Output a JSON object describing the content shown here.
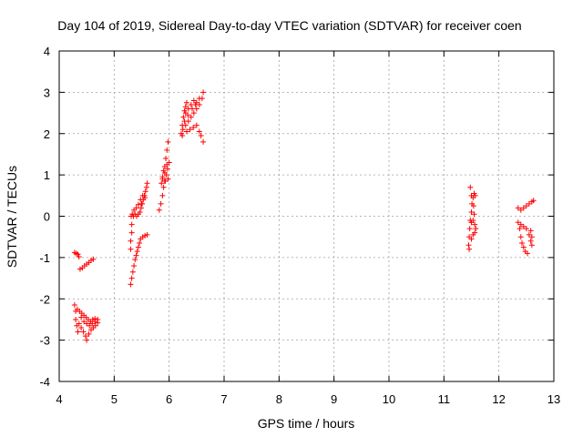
{
  "chart_data": {
    "type": "scatter",
    "title": "Day 104 of 2019, Sidereal Day-to-day VTEC variation (SDTVAR) for receiver coen",
    "xlabel": "GPS time / hours",
    "ylabel": "SDTVAR / TECUs",
    "xlim": [
      4,
      13
    ],
    "ylim": [
      -4,
      4
    ],
    "xticks": [
      4,
      5,
      6,
      7,
      8,
      9,
      10,
      11,
      12,
      13
    ],
    "yticks": [
      -4,
      -3,
      -2,
      -1,
      0,
      1,
      2,
      3,
      4
    ],
    "xtick_labels": [
      "4",
      "5",
      "6",
      "7",
      "8",
      "9",
      "10",
      "11",
      "12",
      "13"
    ],
    "ytick_labels": [
      "-4",
      "-3",
      "-2",
      "-1",
      "0",
      "1",
      "2",
      "3",
      "4"
    ],
    "grid": true,
    "marker": "+",
    "color": "#ff0000",
    "series": [
      {
        "name": "SDTVAR",
        "points": [
          [
            4.28,
            -0.88
          ],
          [
            4.31,
            -0.9
          ],
          [
            4.34,
            -0.92
          ],
          [
            4.36,
            -0.98
          ],
          [
            4.38,
            -1.28
          ],
          [
            4.42,
            -1.25
          ],
          [
            4.46,
            -1.2
          ],
          [
            4.5,
            -1.16
          ],
          [
            4.54,
            -1.12
          ],
          [
            4.58,
            -1.07
          ],
          [
            4.62,
            -1.04
          ],
          [
            4.28,
            -2.15
          ],
          [
            4.3,
            -2.3
          ],
          [
            4.3,
            -2.5
          ],
          [
            4.32,
            -2.65
          ],
          [
            4.34,
            -2.8
          ],
          [
            4.33,
            -2.25
          ],
          [
            4.37,
            -2.3
          ],
          [
            4.41,
            -2.35
          ],
          [
            4.45,
            -2.4
          ],
          [
            4.49,
            -2.45
          ],
          [
            4.53,
            -2.5
          ],
          [
            4.57,
            -2.55
          ],
          [
            4.61,
            -2.5
          ],
          [
            4.65,
            -2.48
          ],
          [
            4.36,
            -2.6
          ],
          [
            4.4,
            -2.7
          ],
          [
            4.44,
            -2.8
          ],
          [
            4.48,
            -2.9
          ],
          [
            4.5,
            -3.0
          ],
          [
            4.54,
            -2.85
          ],
          [
            4.58,
            -2.75
          ],
          [
            4.62,
            -2.7
          ],
          [
            4.66,
            -2.65
          ],
          [
            4.7,
            -2.58
          ],
          [
            4.4,
            -2.45
          ],
          [
            4.45,
            -2.55
          ],
          [
            4.5,
            -2.6
          ],
          [
            4.55,
            -2.65
          ],
          [
            4.6,
            -2.6
          ],
          [
            4.65,
            -2.55
          ],
          [
            4.7,
            -2.5
          ],
          [
            5.3,
            -1.65
          ],
          [
            5.32,
            -1.5
          ],
          [
            5.34,
            -1.35
          ],
          [
            5.36,
            -1.2
          ],
          [
            5.38,
            -1.05
          ],
          [
            5.4,
            -0.95
          ],
          [
            5.42,
            -0.85
          ],
          [
            5.44,
            -0.75
          ],
          [
            5.46,
            -0.65
          ],
          [
            5.48,
            -0.55
          ],
          [
            5.52,
            -0.5
          ],
          [
            5.56,
            -0.47
          ],
          [
            5.6,
            -0.45
          ],
          [
            5.3,
            -0.8
          ],
          [
            5.3,
            -0.6
          ],
          [
            5.32,
            -0.4
          ],
          [
            5.32,
            -0.2
          ],
          [
            5.31,
            0.0
          ],
          [
            5.33,
            0.05
          ],
          [
            5.35,
            0.0
          ],
          [
            5.38,
            0.05
          ],
          [
            5.41,
            0.0
          ],
          [
            5.44,
            0.05
          ],
          [
            5.47,
            0.1
          ],
          [
            5.49,
            0.2
          ],
          [
            5.51,
            0.3
          ],
          [
            5.53,
            0.4
          ],
          [
            5.55,
            0.5
          ],
          [
            5.57,
            0.6
          ],
          [
            5.59,
            0.7
          ],
          [
            5.6,
            0.8
          ],
          [
            5.36,
            0.15
          ],
          [
            5.4,
            0.2
          ],
          [
            5.44,
            0.28
          ],
          [
            5.48,
            0.4
          ],
          [
            5.52,
            0.5
          ],
          [
            5.56,
            0.45
          ],
          [
            5.5,
            0.3
          ],
          [
            5.82,
            0.15
          ],
          [
            5.85,
            0.3
          ],
          [
            5.88,
            0.5
          ],
          [
            5.9,
            0.7
          ],
          [
            5.92,
            0.85
          ],
          [
            5.95,
            1.0
          ],
          [
            5.97,
            1.15
          ],
          [
            6.0,
            1.3
          ],
          [
            5.86,
            0.8
          ],
          [
            5.88,
            0.95
          ],
          [
            5.9,
            1.1
          ],
          [
            5.92,
            1.2
          ],
          [
            5.94,
            1.4
          ],
          [
            5.96,
            1.6
          ],
          [
            5.98,
            1.8
          ],
          [
            5.88,
            0.9
          ],
          [
            5.93,
            0.85
          ],
          [
            5.98,
            0.9
          ],
          [
            5.92,
            1.05
          ],
          [
            5.96,
            1.25
          ],
          [
            6.22,
            2.0
          ],
          [
            6.24,
            2.2
          ],
          [
            6.26,
            2.4
          ],
          [
            6.28,
            2.55
          ],
          [
            6.3,
            2.65
          ],
          [
            6.32,
            2.75
          ],
          [
            6.25,
            2.1
          ],
          [
            6.3,
            2.2
          ],
          [
            6.35,
            2.3
          ],
          [
            6.4,
            2.4
          ],
          [
            6.45,
            2.5
          ],
          [
            6.5,
            2.6
          ],
          [
            6.55,
            2.7
          ],
          [
            6.6,
            2.85
          ],
          [
            6.62,
            3.0
          ],
          [
            6.3,
            2.5
          ],
          [
            6.35,
            2.6
          ],
          [
            6.4,
            2.7
          ],
          [
            6.45,
            2.8
          ],
          [
            6.5,
            2.75
          ],
          [
            6.55,
            2.85
          ],
          [
            6.32,
            2.05
          ],
          [
            6.38,
            2.1
          ],
          [
            6.44,
            2.15
          ],
          [
            6.5,
            2.2
          ],
          [
            6.55,
            2.05
          ],
          [
            6.58,
            1.95
          ],
          [
            6.62,
            1.8
          ],
          [
            6.24,
            1.95
          ],
          [
            6.28,
            2.3
          ],
          [
            6.34,
            2.45
          ],
          [
            6.42,
            2.6
          ],
          [
            6.48,
            2.7
          ],
          [
            11.48,
            0.7
          ],
          [
            11.5,
            0.5
          ],
          [
            11.51,
            0.3
          ],
          [
            11.5,
            0.1
          ],
          [
            11.48,
            -0.1
          ],
          [
            11.47,
            -0.3
          ],
          [
            11.46,
            -0.5
          ],
          [
            11.45,
            -0.7
          ],
          [
            11.46,
            -0.8
          ],
          [
            11.5,
            -0.15
          ],
          [
            11.53,
            -0.1
          ],
          [
            11.56,
            -0.2
          ],
          [
            11.55,
            0.05
          ],
          [
            11.54,
            0.25
          ],
          [
            11.53,
            0.45
          ],
          [
            11.55,
            0.55
          ],
          [
            11.57,
            0.5
          ],
          [
            11.5,
            -0.55
          ],
          [
            11.53,
            -0.45
          ],
          [
            11.56,
            -0.4
          ],
          [
            11.58,
            -0.3
          ],
          [
            12.35,
            0.2
          ],
          [
            12.4,
            0.15
          ],
          [
            12.45,
            0.2
          ],
          [
            12.5,
            0.25
          ],
          [
            12.55,
            0.3
          ],
          [
            12.6,
            0.35
          ],
          [
            12.63,
            0.38
          ],
          [
            12.35,
            -0.15
          ],
          [
            12.38,
            -0.3
          ],
          [
            12.4,
            -0.5
          ],
          [
            12.42,
            -0.65
          ],
          [
            12.45,
            -0.75
          ],
          [
            12.48,
            -0.85
          ],
          [
            12.52,
            -0.9
          ],
          [
            12.4,
            -0.2
          ],
          [
            12.45,
            -0.25
          ],
          [
            12.5,
            -0.3
          ],
          [
            12.55,
            -0.45
          ],
          [
            12.58,
            -0.6
          ],
          [
            12.6,
            -0.7
          ],
          [
            12.6,
            -0.5
          ],
          [
            12.58,
            -0.35
          ]
        ]
      }
    ]
  }
}
